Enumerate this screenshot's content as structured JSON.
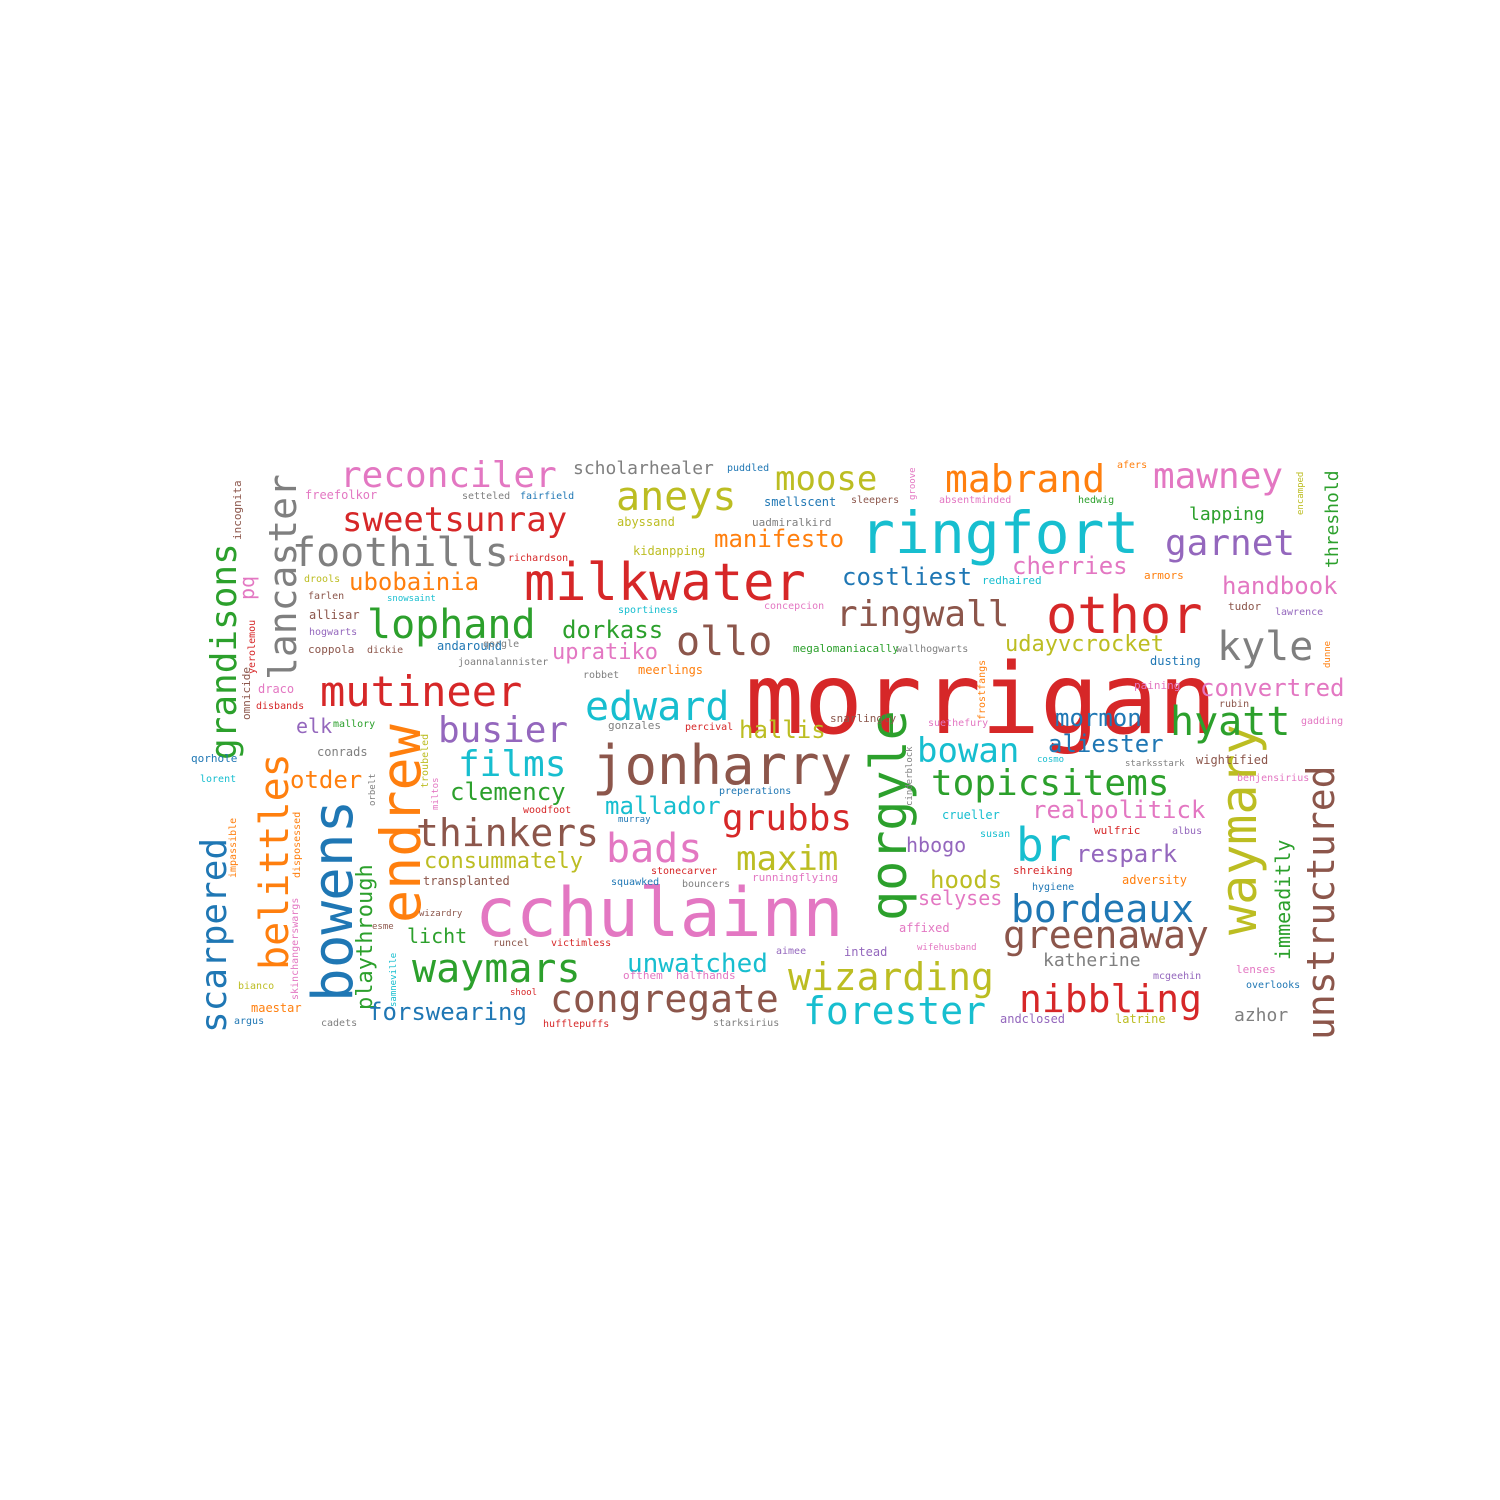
{
  "palette": {
    "blue": "#1f77b4",
    "orange": "#ff7f0e",
    "green": "#2ca02c",
    "red": "#d62728",
    "purple": "#9467bd",
    "brown": "#8c564b",
    "pink": "#e377c2",
    "gray": "#7f7f7f",
    "olive": "#bcbd22",
    "cyan": "#17becf"
  },
  "words": [
    {
      "text": "morrigan",
      "color": "red",
      "rank": 1
    },
    {
      "text": "cchulainn",
      "color": "pink",
      "rank": 1
    },
    {
      "text": "milkwater",
      "color": "red",
      "rank": 2
    },
    {
      "text": "ringfort",
      "color": "cyan",
      "rank": 2
    },
    {
      "text": "jonharry",
      "color": "brown",
      "rank": 2
    },
    {
      "text": "othor",
      "color": "red",
      "rank": 2
    },
    {
      "text": "endrew",
      "color": "orange",
      "rank": 2
    },
    {
      "text": "bowens",
      "color": "blue",
      "rank": 2
    },
    {
      "text": "qorgyle",
      "color": "green",
      "rank": 2
    },
    {
      "text": "waymary",
      "color": "olive",
      "rank": 2
    },
    {
      "text": "br",
      "color": "cyan",
      "rank": 2
    },
    {
      "text": "unstructured",
      "color": "brown",
      "rank": 3
    },
    {
      "text": "belittles",
      "color": "orange",
      "rank": 3
    },
    {
      "text": "lancaster",
      "color": "gray",
      "rank": 3
    },
    {
      "text": "edward",
      "color": "cyan",
      "rank": 3
    },
    {
      "text": "aneys",
      "color": "olive",
      "rank": 3
    },
    {
      "text": "mutineer",
      "color": "red",
      "rank": 3
    },
    {
      "text": "foothills",
      "color": "gray",
      "rank": 3
    },
    {
      "text": "lophand",
      "color": "green",
      "rank": 3
    },
    {
      "text": "ollo",
      "color": "brown",
      "rank": 3
    },
    {
      "text": "waymars",
      "color": "green",
      "rank": 3
    },
    {
      "text": "congregate",
      "color": "brown",
      "rank": 3
    },
    {
      "text": "wizarding",
      "color": "olive",
      "rank": 3
    },
    {
      "text": "forester",
      "color": "cyan",
      "rank": 3
    },
    {
      "text": "bads",
      "color": "pink",
      "rank": 3
    },
    {
      "text": "thinkers",
      "color": "brown",
      "rank": 3
    },
    {
      "text": "mabrand",
      "color": "orange",
      "rank": 3
    },
    {
      "text": "mawney",
      "color": "pink",
      "rank": 3
    },
    {
      "text": "reconciler",
      "color": "pink",
      "rank": 3
    },
    {
      "text": "grandisons",
      "color": "green",
      "rank": 3
    },
    {
      "text": "scarpered",
      "color": "blue",
      "rank": 3
    },
    {
      "text": "hyatt",
      "color": "green",
      "rank": 3
    },
    {
      "text": "greenaway",
      "color": "brown",
      "rank": 3
    },
    {
      "text": "nibbling",
      "color": "red",
      "rank": 3
    },
    {
      "text": "topicsitems",
      "color": "green",
      "rank": 3
    },
    {
      "text": "bordeaux",
      "color": "blue",
      "rank": 3
    },
    {
      "text": "kyle",
      "color": "gray",
      "rank": 3
    },
    {
      "text": "sweetsunray",
      "color": "red",
      "rank": 4
    },
    {
      "text": "moose",
      "color": "olive",
      "rank": 4
    },
    {
      "text": "garnet",
      "color": "purple",
      "rank": 4
    },
    {
      "text": "ringwall",
      "color": "brown",
      "rank": 4
    },
    {
      "text": "busier",
      "color": "purple",
      "rank": 4
    },
    {
      "text": "films",
      "color": "cyan",
      "rank": 4
    },
    {
      "text": "grubbs",
      "color": "red",
      "rank": 4
    },
    {
      "text": "maxim",
      "color": "olive",
      "rank": 4
    },
    {
      "text": "bowan",
      "color": "cyan",
      "rank": 4
    },
    {
      "text": "playthrough",
      "color": "green",
      "rank": 5
    },
    {
      "text": "forswearing",
      "color": "blue",
      "rank": 5
    },
    {
      "text": "unwatched",
      "color": "cyan",
      "rank": 5
    },
    {
      "text": "manifesto",
      "color": "orange",
      "rank": 5
    },
    {
      "text": "costliest",
      "color": "blue",
      "rank": 5
    },
    {
      "text": "dorkass",
      "color": "green",
      "rank": 5
    },
    {
      "text": "cherries",
      "color": "pink",
      "rank": 5
    },
    {
      "text": "handbook",
      "color": "pink",
      "rank": 5
    },
    {
      "text": "convertred",
      "color": "pink",
      "rank": 5
    },
    {
      "text": "immeaditly",
      "color": "green",
      "rank": 5
    },
    {
      "text": "clemency",
      "color": "green",
      "rank": 5
    },
    {
      "text": "mallador",
      "color": "cyan",
      "rank": 5
    },
    {
      "text": "consummately",
      "color": "olive",
      "rank": 5
    },
    {
      "text": "realpolitick",
      "color": "pink",
      "rank": 5
    },
    {
      "text": "respark",
      "color": "purple",
      "rank": 5
    },
    {
      "text": "hallis",
      "color": "olive",
      "rank": 5
    },
    {
      "text": "aliester",
      "color": "blue",
      "rank": 5
    },
    {
      "text": "mormon",
      "color": "blue",
      "rank": 5
    },
    {
      "text": "udayvcrocket",
      "color": "olive",
      "rank": 5
    },
    {
      "text": "ubobainia",
      "color": "orange",
      "rank": 5
    },
    {
      "text": "upratiko",
      "color": "pink",
      "rank": 5
    },
    {
      "text": "otder",
      "color": "orange",
      "rank": 5
    },
    {
      "text": "hoods",
      "color": "olive",
      "rank": 5
    },
    {
      "text": "scholarhealer",
      "color": "gray",
      "rank": 6
    },
    {
      "text": "threshold",
      "color": "green",
      "rank": 6
    },
    {
      "text": "katherine",
      "color": "gray",
      "rank": 6
    },
    {
      "text": "azhor",
      "color": "gray",
      "rank": 6
    },
    {
      "text": "hbogo",
      "color": "purple",
      "rank": 6
    },
    {
      "text": "licht",
      "color": "green",
      "rank": 6
    },
    {
      "text": "selyses",
      "color": "pink",
      "rank": 6
    },
    {
      "text": "lapping",
      "color": "green",
      "rank": 6
    },
    {
      "text": "elk",
      "color": "purple",
      "rank": 6
    },
    {
      "text": "pq",
      "color": "pink",
      "rank": 6
    },
    {
      "text": "incognita",
      "color": "brown",
      "rank": 7
    },
    {
      "text": "freefolkor",
      "color": "pink",
      "rank": 7
    },
    {
      "text": "setteled",
      "color": "gray",
      "rank": 7
    },
    {
      "text": "fairfield",
      "color": "blue",
      "rank": 7
    },
    {
      "text": "puddled",
      "color": "blue",
      "rank": 7
    },
    {
      "text": "abyssand",
      "color": "olive",
      "rank": 7
    },
    {
      "text": "smellscent",
      "color": "blue",
      "rank": 7
    },
    {
      "text": "sleepers",
      "color": "brown",
      "rank": 7
    },
    {
      "text": "absentminded",
      "color": "pink",
      "rank": 7
    },
    {
      "text": "hedwig",
      "color": "green",
      "rank": 7
    },
    {
      "text": "afers",
      "color": "orange",
      "rank": 7
    },
    {
      "text": "encamped",
      "color": "olive",
      "rank": 7
    },
    {
      "text": "groove",
      "color": "pink",
      "rank": 7
    },
    {
      "text": "richardson",
      "color": "red",
      "rank": 7
    },
    {
      "text": "kidanpping",
      "color": "olive",
      "rank": 7
    },
    {
      "text": "uadmiralkird",
      "color": "gray",
      "rank": 7
    },
    {
      "text": "redhaired",
      "color": "cyan",
      "rank": 7
    },
    {
      "text": "armors",
      "color": "orange",
      "rank": 7
    },
    {
      "text": "drools",
      "color": "olive",
      "rank": 7
    },
    {
      "text": "farlen",
      "color": "brown",
      "rank": 7
    },
    {
      "text": "snowsaint",
      "color": "cyan",
      "rank": 7
    },
    {
      "text": "sportiness",
      "color": "cyan",
      "rank": 7
    },
    {
      "text": "concepcion",
      "color": "pink",
      "rank": 7
    },
    {
      "text": "tudor",
      "color": "brown",
      "rank": 7
    },
    {
      "text": "lawrence",
      "color": "purple",
      "rank": 7
    },
    {
      "text": "allisar",
      "color": "brown",
      "rank": 7
    },
    {
      "text": "hogwarts",
      "color": "purple",
      "rank": 7
    },
    {
      "text": "coppola",
      "color": "brown",
      "rank": 7
    },
    {
      "text": "dickie",
      "color": "brown",
      "rank": 7
    },
    {
      "text": "andaround",
      "color": "blue",
      "rank": 7
    },
    {
      "text": "joannalannister",
      "color": "gray",
      "rank": 7
    },
    {
      "text": "robbet",
      "color": "gray",
      "rank": 7
    },
    {
      "text": "meerlings",
      "color": "orange",
      "rank": 7
    },
    {
      "text": "megalomaniacally",
      "color": "green",
      "rank": 7
    },
    {
      "text": "frostfangs",
      "color": "orange",
      "rank": 7
    },
    {
      "text": "dusting",
      "color": "blue",
      "rank": 7
    },
    {
      "text": "dunne",
      "color": "orange",
      "rank": 7
    },
    {
      "text": "yerolemou",
      "color": "red",
      "rank": 7
    },
    {
      "text": "omnicide",
      "color": "brown",
      "rank": 7
    },
    {
      "text": "draco",
      "color": "pink",
      "rank": 7
    },
    {
      "text": "disbands",
      "color": "red",
      "rank": 7
    },
    {
      "text": "mallory",
      "color": "green",
      "rank": 7
    },
    {
      "text": "gonzales",
      "color": "gray",
      "rank": 7
    },
    {
      "text": "percival",
      "color": "red",
      "rank": 7
    },
    {
      "text": "snarlingly",
      "color": "brown",
      "rank": 7
    },
    {
      "text": "suethefury",
      "color": "pink",
      "rank": 7
    },
    {
      "text": "paining",
      "color": "pink",
      "rank": 7
    },
    {
      "text": "rubin",
      "color": "brown",
      "rank": 7
    },
    {
      "text": "gadding",
      "color": "pink",
      "rank": 7
    },
    {
      "text": "qorhole",
      "color": "blue",
      "rank": 7
    },
    {
      "text": "conrads",
      "color": "gray",
      "rank": 7
    },
    {
      "text": "troubeled",
      "color": "olive",
      "rank": 7
    },
    {
      "text": "cinderblock",
      "color": "gray",
      "rank": 7
    },
    {
      "text": "cosmo",
      "color": "cyan",
      "rank": 7
    },
    {
      "text": "starksstark",
      "color": "gray",
      "rank": 7
    },
    {
      "text": "wightified",
      "color": "brown",
      "rank": 7
    },
    {
      "text": "benjensirius",
      "color": "pink",
      "rank": 7
    },
    {
      "text": "lorent",
      "color": "cyan",
      "rank": 7
    },
    {
      "text": "orbelt",
      "color": "gray",
      "rank": 7
    },
    {
      "text": "miltos",
      "color": "pink",
      "rank": 7
    },
    {
      "text": "preperations",
      "color": "blue",
      "rank": 7
    },
    {
      "text": "crueller",
      "color": "cyan",
      "rank": 7
    },
    {
      "text": "impassible",
      "color": "orange",
      "rank": 7
    },
    {
      "text": "disposessed",
      "color": "orange",
      "rank": 7
    },
    {
      "text": "woodfoot",
      "color": "red",
      "rank": 7
    },
    {
      "text": "murray",
      "color": "blue",
      "rank": 7
    },
    {
      "text": "wulfric",
      "color": "red",
      "rank": 7
    },
    {
      "text": "albus",
      "color": "purple",
      "rank": 7
    },
    {
      "text": "susan",
      "color": "cyan",
      "rank": 7
    },
    {
      "text": "stonecarver",
      "color": "red",
      "rank": 7
    },
    {
      "text": "squawked",
      "color": "blue",
      "rank": 7
    },
    {
      "text": "bouncers",
      "color": "gray",
      "rank": 7
    },
    {
      "text": "runningflying",
      "color": "pink",
      "rank": 7
    },
    {
      "text": "shreiking",
      "color": "red",
      "rank": 7
    },
    {
      "text": "adversity",
      "color": "orange",
      "rank": 7
    },
    {
      "text": "hygiene",
      "color": "blue",
      "rank": 7
    },
    {
      "text": "transplanted",
      "color": "brown",
      "rank": 7
    },
    {
      "text": "skinchangerswargs",
      "color": "pink",
      "rank": 7
    },
    {
      "text": "wizardry",
      "color": "brown",
      "rank": 7
    },
    {
      "text": "esme",
      "color": "brown",
      "rank": 7
    },
    {
      "text": "runcel",
      "color": "brown",
      "rank": 7
    },
    {
      "text": "victimless",
      "color": "red",
      "rank": 7
    },
    {
      "text": "affixed",
      "color": "pink",
      "rank": 7
    },
    {
      "text": "aimee",
      "color": "purple",
      "rank": 7
    },
    {
      "text": "intead",
      "color": "purple",
      "rank": 7
    },
    {
      "text": "wifehusband",
      "color": "pink",
      "rank": 7
    },
    {
      "text": "samneville",
      "color": "cyan",
      "rank": 7
    },
    {
      "text": "ofthem",
      "color": "pink",
      "rank": 7
    },
    {
      "text": "halfhands",
      "color": "pink",
      "rank": 7
    },
    {
      "text": "mcgeehin",
      "color": "purple",
      "rank": 7
    },
    {
      "text": "lenses",
      "color": "pink",
      "rank": 7
    },
    {
      "text": "overlooks",
      "color": "blue",
      "rank": 7
    },
    {
      "text": "bianco",
      "color": "olive",
      "rank": 7
    },
    {
      "text": "shool",
      "color": "red",
      "rank": 7
    },
    {
      "text": "maestar",
      "color": "orange",
      "rank": 7
    },
    {
      "text": "argus",
      "color": "blue",
      "rank": 7
    },
    {
      "text": "cadets",
      "color": "gray",
      "rank": 7
    },
    {
      "text": "hufflepuffs",
      "color": "red",
      "rank": 7
    },
    {
      "text": "starksirius",
      "color": "gray",
      "rank": 7
    },
    {
      "text": "andclosed",
      "color": "purple",
      "rank": 7
    },
    {
      "text": "latrine",
      "color": "olive",
      "rank": 7
    },
    {
      "text": "qorgle",
      "color": "gray",
      "rank": 7
    },
    {
      "text": "wallhogwarts",
      "color": "gray",
      "rank": 7
    }
  ]
}
